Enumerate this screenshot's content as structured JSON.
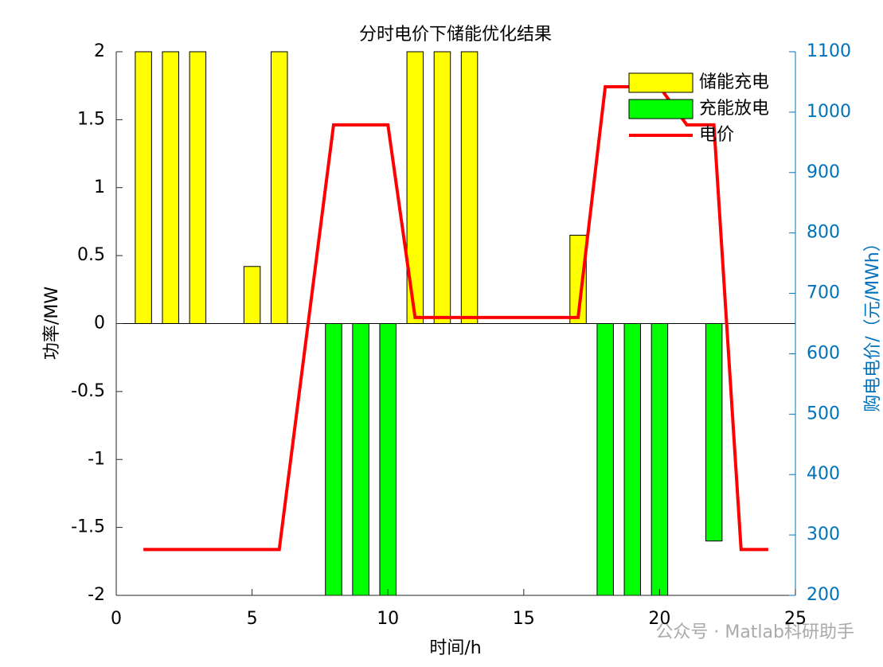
{
  "chart_data": {
    "type": "bar-line",
    "title": "分时电价下储能优化结果",
    "xlabel": "时间/h",
    "ylabel": "功率/MW",
    "y2label": "购电电价/（元/MWh）",
    "watermark": "公众号 · Matlab科研助手",
    "x": [
      1,
      2,
      3,
      4,
      5,
      6,
      7,
      8,
      9,
      10,
      11,
      12,
      13,
      14,
      15,
      16,
      17,
      18,
      19,
      20,
      21,
      22,
      23,
      24
    ],
    "series": [
      {
        "name": "储能充电",
        "color": "#ffff00",
        "kind": "bar",
        "values": [
          2,
          2,
          2,
          0,
          0.42,
          2,
          0,
          0,
          0,
          0,
          2,
          2,
          2,
          0,
          0,
          0,
          0.65,
          0,
          0,
          0,
          0,
          0,
          0,
          0
        ]
      },
      {
        "name": "充能放电",
        "color": "#00ff00",
        "kind": "bar",
        "values": [
          0,
          0,
          0,
          0,
          0,
          0,
          0,
          -2,
          -2,
          -2,
          0,
          0,
          0,
          0,
          0,
          0,
          0,
          -2,
          -2,
          -2,
          0,
          -1.6,
          0,
          0
        ]
      },
      {
        "name": "电价",
        "color": "#ff0000",
        "kind": "line",
        "axis": "y2",
        "values": [
          276,
          276,
          276,
          276,
          276,
          276,
          628,
          979,
          979,
          979,
          660,
          660,
          660,
          660,
          660,
          660,
          660,
          1042,
          1042,
          1042,
          979,
          979,
          276,
          276
        ]
      }
    ],
    "xlim": [
      0,
      25
    ],
    "xticks": [
      0,
      5,
      10,
      15,
      20,
      25
    ],
    "ylim": [
      -2,
      2
    ],
    "yticks": [
      -2,
      -1.5,
      -1,
      -0.5,
      0,
      0.5,
      1,
      1.5,
      2
    ],
    "y2lim": [
      200,
      1100
    ],
    "y2ticks": [
      200,
      300,
      400,
      500,
      600,
      700,
      800,
      900,
      1000,
      1100
    ],
    "y2color": "#0072bd",
    "legend": "top-right"
  }
}
